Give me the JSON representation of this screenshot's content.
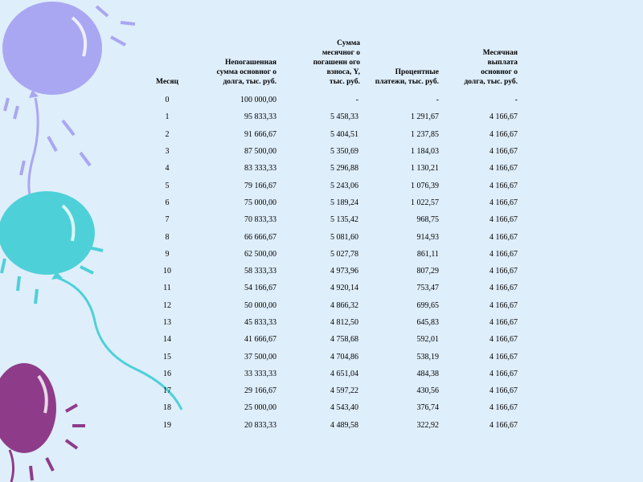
{
  "table": {
    "headers": [
      "Месяц",
      "Непогашенная сумма основног о долга, тыс. руб.",
      "Сумма месячног о погашенн ого взноса, Y, тыс. руб.",
      "Процентные платежи, тыс. руб.",
      "Месячная выплата основног о долга, тыс. руб."
    ],
    "rows": [
      [
        "0",
        "100 000,00",
        "-",
        "-",
        "-"
      ],
      [
        "1",
        "95 833,33",
        "5 458,33",
        "1 291,67",
        "4 166,67"
      ],
      [
        "2",
        "91 666,67",
        "5 404,51",
        "1 237,85",
        "4 166,67"
      ],
      [
        "3",
        "87 500,00",
        "5 350,69",
        "1 184,03",
        "4 166,67"
      ],
      [
        "4",
        "83 333,33",
        "5 296,88",
        "1 130,21",
        "4 166,67"
      ],
      [
        "5",
        "79 166,67",
        "5 243,06",
        "1 076,39",
        "4 166,67"
      ],
      [
        "6",
        "75 000,00",
        "5 189,24",
        "1 022,57",
        "4 166,67"
      ],
      [
        "7",
        "70 833,33",
        "5 135,42",
        "968,75",
        "4 166,67"
      ],
      [
        "8",
        "66 666,67",
        "5 081,60",
        "914,93",
        "4 166,67"
      ],
      [
        "9",
        "62 500,00",
        "5 027,78",
        "861,11",
        "4 166,67"
      ],
      [
        "10",
        "58 333,33",
        "4 973,96",
        "807,29",
        "4 166,67"
      ],
      [
        "11",
        "54 166,67",
        "4 920,14",
        "753,47",
        "4 166,67"
      ],
      [
        "12",
        "50 000,00",
        "4 866,32",
        "699,65",
        "4 166,67"
      ],
      [
        "13",
        "45 833,33",
        "4 812,50",
        "645,83",
        "4 166,67"
      ],
      [
        "14",
        "41 666,67",
        "4 758,68",
        "592,01",
        "4 166,67"
      ],
      [
        "15",
        "37 500,00",
        "4 704,86",
        "538,19",
        "4 166,67"
      ],
      [
        "16",
        "33 333,33",
        "4 651,04",
        "484,38",
        "4 166,67"
      ],
      [
        "17",
        "29 166,67",
        "4 597,22",
        "430,56",
        "4 166,67"
      ],
      [
        "18",
        "25 000,00",
        "4 543,40",
        "376,74",
        "4 166,67"
      ],
      [
        "19",
        "20 833,33",
        "4 489,58",
        "322,92",
        "4 166,67"
      ]
    ]
  },
  "decoration": {
    "balloon_colors": [
      "#a9a7f2",
      "#4ed0d8",
      "#8e3c8a"
    ],
    "background": "#dfeefb"
  }
}
